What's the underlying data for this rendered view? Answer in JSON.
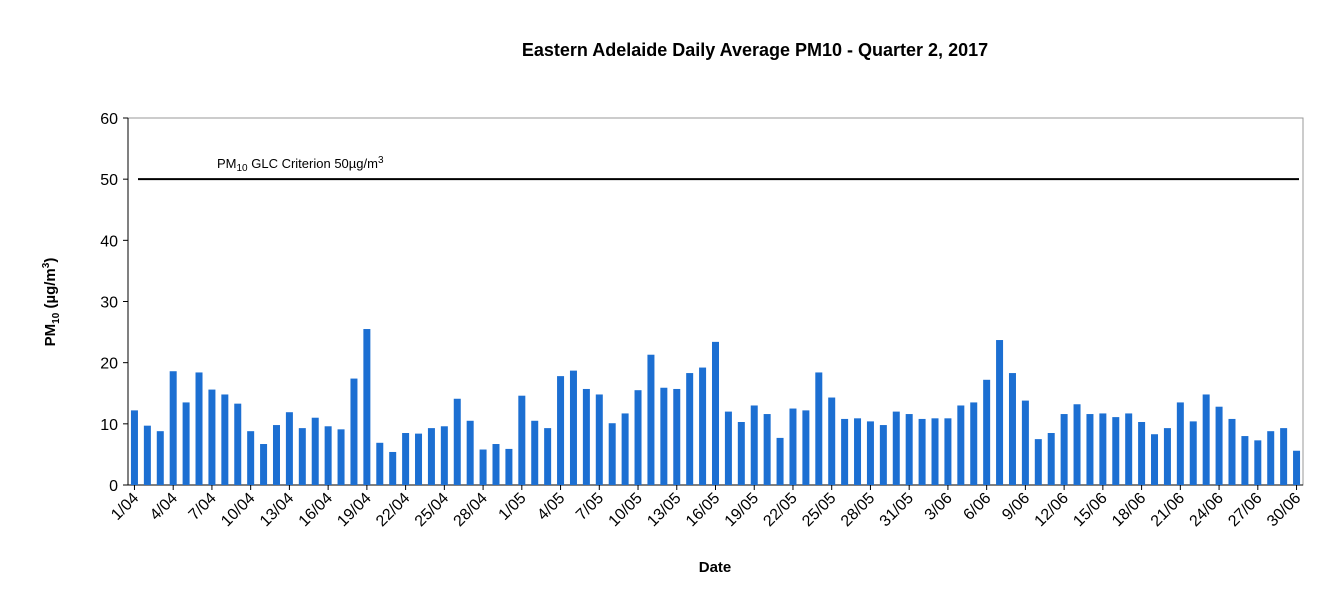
{
  "chart_data": {
    "type": "bar",
    "title": "Eastern Adelaide Daily Average PM10 - Quarter 2, 2017",
    "x_label": "Date",
    "y_label": [
      "PM",
      "10",
      " (µg/m",
      "3",
      ")"
    ],
    "annotation": {
      "text": [
        "PM",
        "10",
        " GLC Criterion 50µg/m",
        "3"
      ],
      "value": 50
    },
    "categories": [
      "1/04",
      null,
      null,
      "4/04",
      null,
      null,
      "7/04",
      null,
      null,
      "10/04",
      null,
      null,
      "13/04",
      null,
      null,
      "16/04",
      null,
      null,
      "19/04",
      null,
      null,
      "22/04",
      null,
      null,
      "25/04",
      null,
      null,
      "28/04",
      null,
      null,
      "1/05",
      null,
      null,
      "4/05",
      null,
      null,
      "7/05",
      null,
      null,
      "10/05",
      null,
      null,
      "13/05",
      null,
      null,
      "16/05",
      null,
      null,
      "19/05",
      null,
      null,
      "22/05",
      null,
      null,
      "25/05",
      null,
      null,
      "28/05",
      null,
      null,
      "31/05",
      null,
      null,
      "3/06",
      null,
      null,
      "6/06",
      null,
      null,
      "9/06",
      null,
      null,
      "12/06",
      null,
      null,
      "15/06",
      null,
      null,
      "18/06",
      null,
      null,
      "21/06",
      null,
      null,
      "24/06",
      null,
      null,
      "27/06",
      null,
      null,
      "30/06"
    ],
    "values": [
      12.2,
      9.7,
      8.8,
      18.6,
      13.5,
      18.4,
      15.6,
      14.8,
      13.3,
      8.8,
      6.7,
      9.8,
      11.9,
      9.3,
      11.0,
      9.6,
      9.1,
      17.4,
      25.5,
      6.9,
      5.4,
      8.5,
      8.4,
      9.3,
      9.6,
      14.1,
      10.5,
      5.8,
      6.7,
      5.9,
      14.6,
      10.5,
      9.3,
      17.8,
      18.7,
      15.7,
      14.8,
      10.1,
      11.7,
      15.5,
      21.3,
      15.9,
      15.7,
      18.3,
      19.2,
      23.4,
      12.0,
      10.3,
      13.0,
      11.6,
      7.7,
      12.5,
      12.2,
      18.4,
      14.3,
      10.8,
      10.9,
      10.4,
      9.8,
      12.0,
      11.6,
      10.8,
      10.9,
      10.9,
      13.0,
      13.5,
      17.2,
      23.7,
      18.3,
      13.8,
      7.5,
      8.5,
      11.6,
      13.2,
      11.6,
      11.7,
      11.1,
      11.7,
      10.3,
      8.3,
      9.3,
      13.5,
      10.4,
      14.8,
      12.8,
      10.8,
      8.0,
      7.3,
      8.8,
      9.3,
      5.6
    ],
    "color": "#1c6fd2",
    "ylim": [
      0,
      60
    ],
    "yticks": [
      0,
      10,
      20,
      30,
      40,
      50,
      60
    ],
    "grid": false
  }
}
